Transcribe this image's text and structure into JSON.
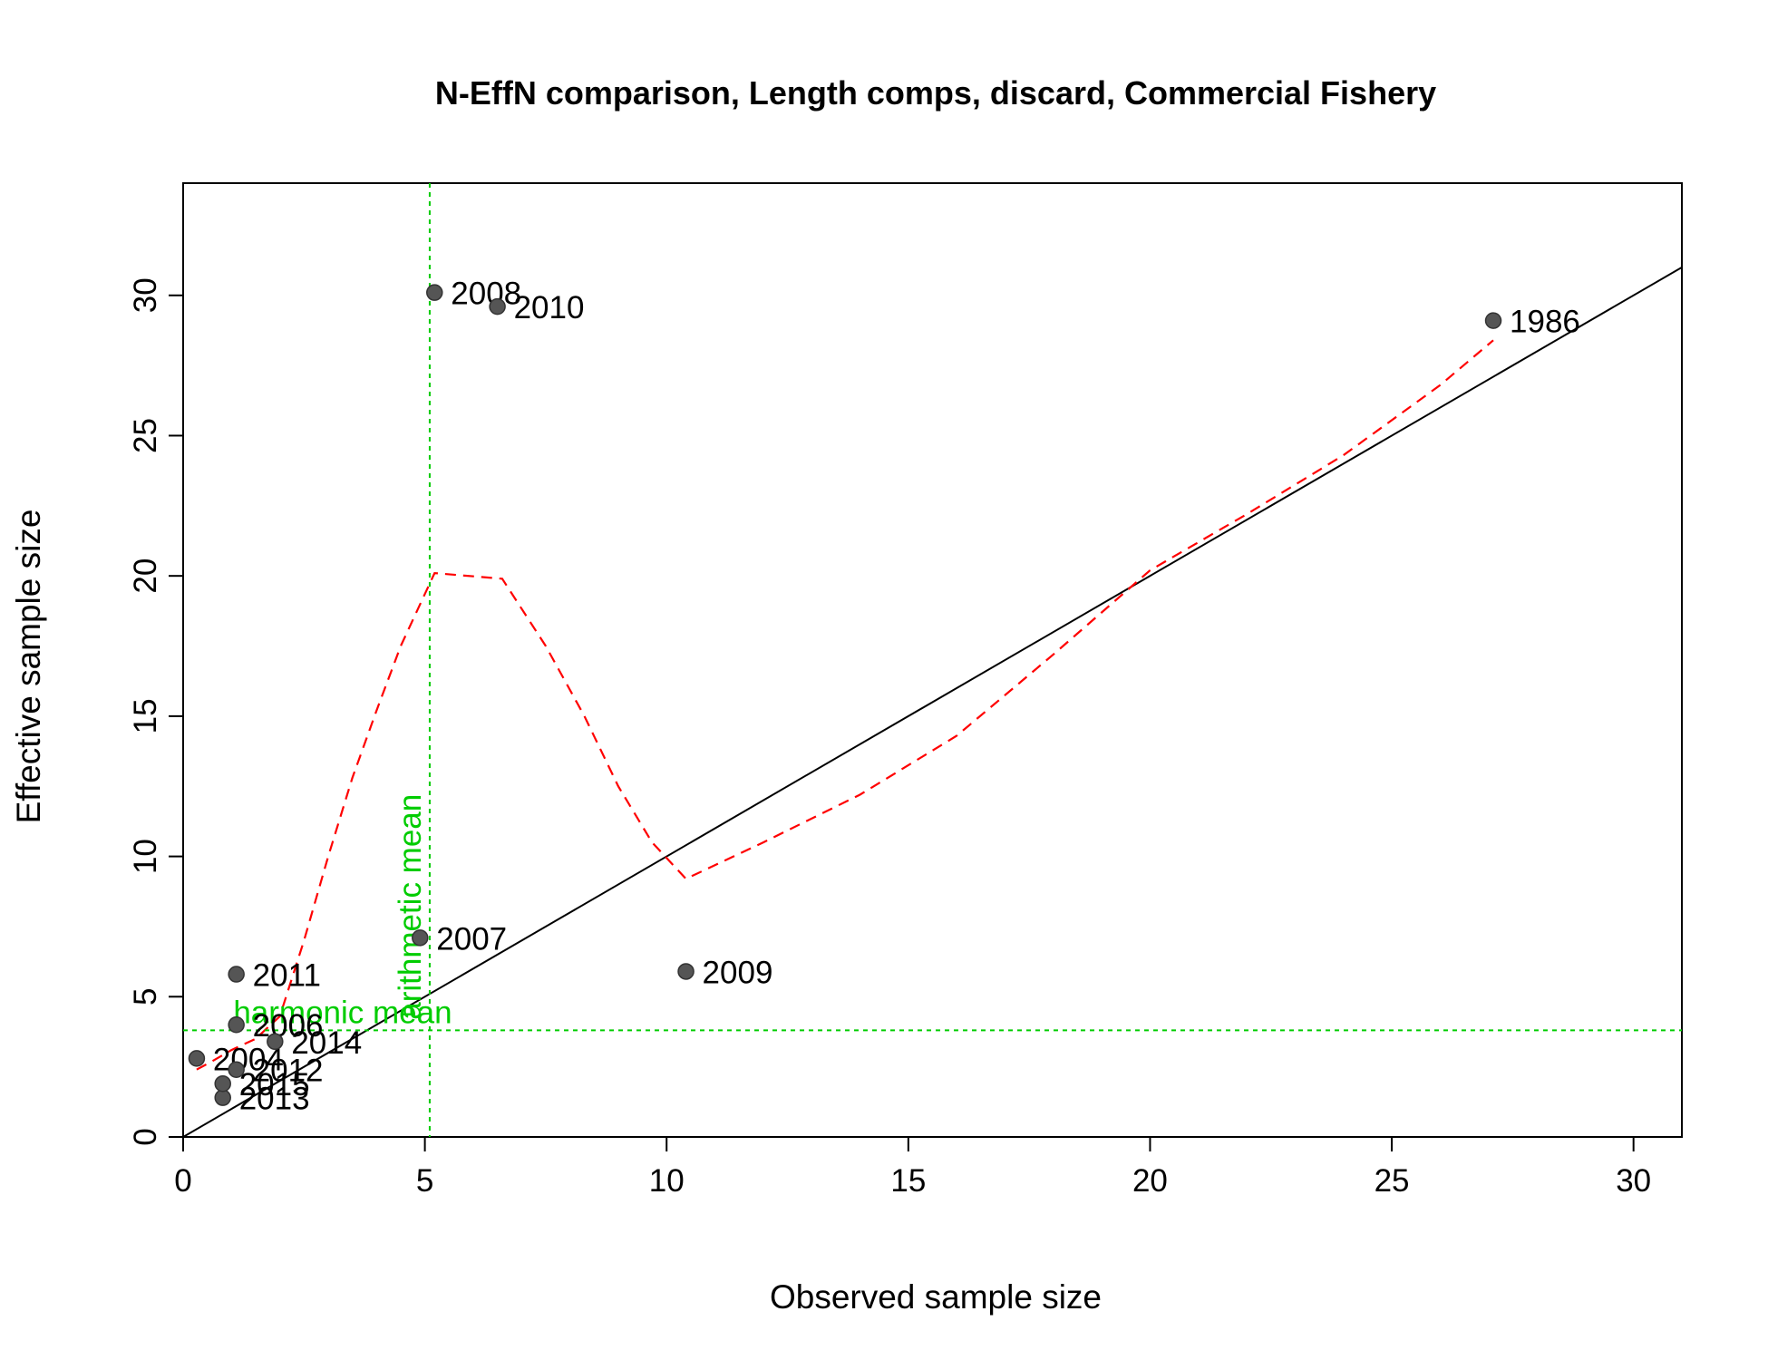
{
  "chart_data": {
    "type": "scatter",
    "title": "N-EffN comparison, Length comps, discard, Commercial Fishery",
    "xlabel": "Observed sample size",
    "ylabel": "Effective sample size",
    "xlim": [
      0,
      31
    ],
    "ylim": [
      0,
      34
    ],
    "xticks": [
      "0",
      "5",
      "10",
      "15",
      "20",
      "25",
      "30"
    ],
    "yticks": [
      "0",
      "5",
      "10",
      "15",
      "20",
      "25",
      "30"
    ],
    "grid": false,
    "points": [
      {
        "label": "1986",
        "x": 27.1,
        "y": 29.1
      },
      {
        "label": "2004",
        "x": 0.28,
        "y": 2.8
      },
      {
        "label": "2006",
        "x": 1.1,
        "y": 4.0
      },
      {
        "label": "2007",
        "x": 4.9,
        "y": 7.1
      },
      {
        "label": "2008",
        "x": 5.2,
        "y": 30.1
      },
      {
        "label": "2009",
        "x": 10.4,
        "y": 5.9
      },
      {
        "label": "2010",
        "x": 6.5,
        "y": 29.6
      },
      {
        "label": "2011",
        "x": 1.1,
        "y": 5.8
      },
      {
        "label": "2012",
        "x": 1.1,
        "y": 2.4
      },
      {
        "label": "2013",
        "x": 0.82,
        "y": 1.4
      },
      {
        "label": "2014",
        "x": 1.9,
        "y": 3.4
      },
      {
        "label": "2015",
        "x": 0.82,
        "y": 1.9
      }
    ],
    "one_to_one_line": true,
    "smoother": [
      [
        0.28,
        2.4
      ],
      [
        0.6,
        2.7
      ],
      [
        1.0,
        3.1
      ],
      [
        1.5,
        3.5
      ],
      [
        2.0,
        4.3
      ],
      [
        2.5,
        7.0
      ],
      [
        3.0,
        10.0
      ],
      [
        3.5,
        12.8
      ],
      [
        4.0,
        15.2
      ],
      [
        4.5,
        17.5
      ],
      [
        5.2,
        20.1
      ],
      [
        6.6,
        19.9
      ],
      [
        7.5,
        17.5
      ],
      [
        8.3,
        15.0
      ],
      [
        9.0,
        12.5
      ],
      [
        9.7,
        10.5
      ],
      [
        10.4,
        9.2
      ],
      [
        12.0,
        10.5
      ],
      [
        14.0,
        12.2
      ],
      [
        16.0,
        14.3
      ],
      [
        18.0,
        17.2
      ],
      [
        20.0,
        20.2
      ],
      [
        22.0,
        22.2
      ],
      [
        24.0,
        24.3
      ],
      [
        26.0,
        26.8
      ],
      [
        27.1,
        28.4
      ]
    ],
    "harmonic_mean": {
      "label": "harmonic mean",
      "value": 3.8
    },
    "arithmetic_mean": {
      "label": "arithmetic mean",
      "value": 5.1
    },
    "colors": {
      "points": "#555555",
      "one_to_one": "#000000",
      "smoother": "#ff0000",
      "means": "#00cc00"
    }
  }
}
